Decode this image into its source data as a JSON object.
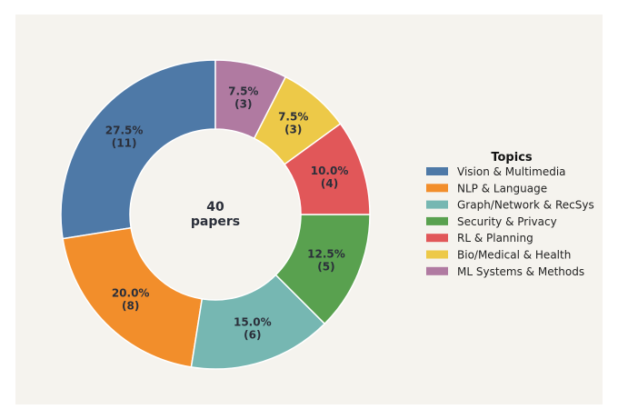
{
  "chart_data": {
    "type": "pie",
    "center_label": {
      "line1": "40",
      "line2": "papers"
    },
    "legend_title": "Topics",
    "legend_position": "right",
    "start_angle_deg": 90,
    "direction": "counterclockwise",
    "slices": [
      {
        "label": "Vision & Multimedia",
        "value": 11,
        "percent": "27.5%",
        "count_label": "(11)",
        "color": "#4e79a7"
      },
      {
        "label": "NLP & Language",
        "value": 8,
        "percent": "20.0%",
        "count_label": "(8)",
        "color": "#f28e2b"
      },
      {
        "label": "Graph/Network & RecSys",
        "value": 6,
        "percent": "15.0%",
        "count_label": "(6)",
        "color": "#76b7b2"
      },
      {
        "label": "Security & Privacy",
        "value": 5,
        "percent": "12.5%",
        "count_label": "(5)",
        "color": "#59a14f"
      },
      {
        "label": "RL & Planning",
        "value": 4,
        "percent": "10.0%",
        "count_label": "(4)",
        "color": "#e15759"
      },
      {
        "label": "Bio/Medical & Health",
        "value": 3,
        "percent": "7.5%",
        "count_label": "(3)",
        "color": "#edc948"
      },
      {
        "label": "ML Systems & Methods",
        "value": 3,
        "percent": "7.5%",
        "count_label": "(3)",
        "color": "#b07aa1"
      }
    ]
  }
}
